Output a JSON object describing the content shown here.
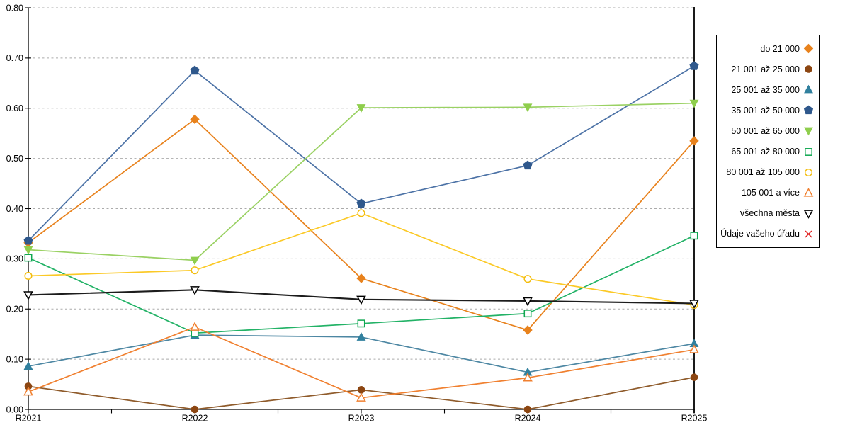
{
  "chart_data": {
    "type": "line",
    "title": "",
    "xlabel": "",
    "ylabel": "",
    "categories": [
      "R2021",
      "R2022",
      "R2023",
      "R2024",
      "R2025"
    ],
    "y_ticks": [
      "0.00",
      "0.10",
      "0.20",
      "0.30",
      "0.40",
      "0.50",
      "0.60",
      "0.70",
      "0.80"
    ],
    "ylim": [
      0,
      0.8
    ],
    "grid": "horizontal-dashed",
    "legend_position": "right",
    "axis_color": "#000000",
    "gridline_color": "#ababab",
    "series": [
      {
        "name": "do 21 000",
        "marker": "diamond",
        "fill": "solid",
        "color": "#E8821D",
        "line_color": "#E8821D",
        "values": [
          0.332,
          0.578,
          0.261,
          0.158,
          0.535
        ]
      },
      {
        "name": "21 001 až 25 000",
        "marker": "circle",
        "fill": "solid",
        "color": "#8C4612",
        "line_color": "#8F5B2B",
        "values": [
          0.046,
          0.0,
          0.039,
          0.0,
          0.064
        ]
      },
      {
        "name": "25 001 až 35 000",
        "marker": "triangle-up",
        "fill": "solid",
        "color": "#31809E",
        "line_color": "#4D87A3",
        "values": [
          0.086,
          0.148,
          0.144,
          0.074,
          0.131
        ]
      },
      {
        "name": "35 001 až 50 000",
        "marker": "pentagon",
        "fill": "solid",
        "color": "#2F588C",
        "line_color": "#4C72A6",
        "values": [
          0.336,
          0.675,
          0.41,
          0.486,
          0.684
        ]
      },
      {
        "name": "50 001 až 65 000",
        "marker": "triangle-down",
        "fill": "solid",
        "color": "#8FCE4D",
        "line_color": "#9AD163",
        "values": [
          0.318,
          0.297,
          0.601,
          0.602,
          0.61
        ]
      },
      {
        "name": "65 001 až 80 000",
        "marker": "square",
        "fill": "open",
        "color": "#0FA750",
        "line_color": "#22B266",
        "values": [
          0.302,
          0.152,
          0.171,
          0.191,
          0.346
        ]
      },
      {
        "name": "80 001 až 105 000",
        "marker": "circle",
        "fill": "open",
        "color": "#F3BD0E",
        "line_color": "#FBC926",
        "values": [
          0.266,
          0.277,
          0.391,
          0.26,
          0.208
        ]
      },
      {
        "name": "105 001 a více",
        "marker": "triangle-up",
        "fill": "open",
        "color": "#F08030",
        "line_color": "#F08030",
        "values": [
          0.035,
          0.164,
          0.023,
          0.063,
          0.119
        ]
      },
      {
        "name": "všechna města",
        "marker": "triangle-down",
        "fill": "open",
        "color": "#000000",
        "line_color": "#1C1C1C",
        "values": [
          0.228,
          0.238,
          0.219,
          0.216,
          0.211
        ]
      },
      {
        "name": "Údaje vašeho úřadu",
        "marker": "x",
        "fill": "open",
        "color": "#E02424",
        "line_color": "#E02424",
        "values": []
      }
    ]
  }
}
